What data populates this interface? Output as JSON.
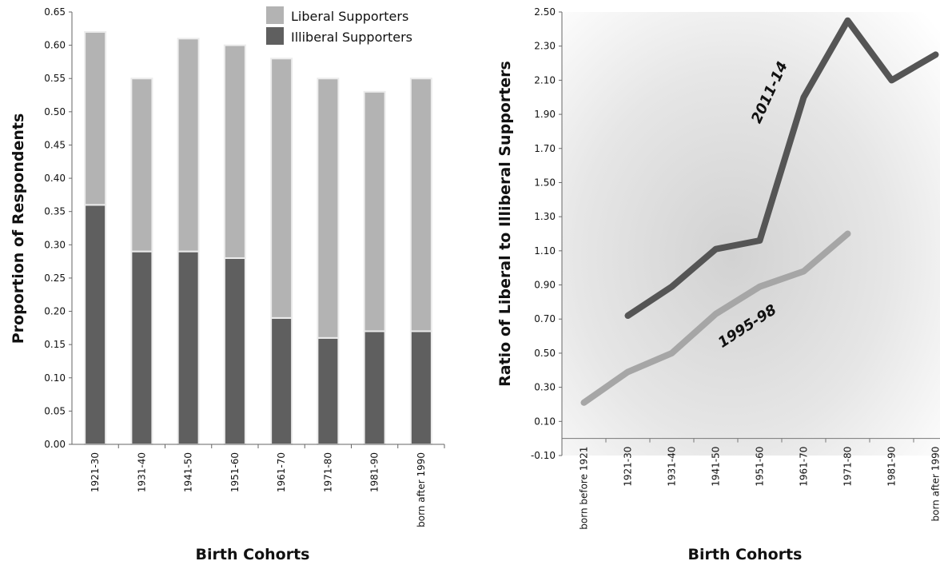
{
  "chart_data": [
    {
      "type": "bar",
      "stacked": true,
      "categories": [
        "1921-30",
        "1931-40",
        "1941-50",
        "1951-60",
        "1961-70",
        "1971-80",
        "1981-90",
        "born after 1990"
      ],
      "series": [
        {
          "name": "Illiberal Supporters",
          "color": "#5f5f5f",
          "values": [
            0.36,
            0.29,
            0.29,
            0.28,
            0.19,
            0.16,
            0.17,
            0.17
          ]
        },
        {
          "name": "Liberal Supporters",
          "color": "#b3b3b3",
          "values": [
            0.26,
            0.26,
            0.32,
            0.32,
            0.39,
            0.39,
            0.36,
            0.38
          ]
        }
      ],
      "totals": [
        0.62,
        0.55,
        0.61,
        0.6,
        0.58,
        0.55,
        0.53,
        0.55
      ],
      "xlabel": "Birth Cohorts",
      "ylabel": "Proportion of Respondents",
      "ylim": [
        0,
        0.65
      ],
      "yticks": [
        "0.00",
        "0.05",
        "0.10",
        "0.15",
        "0.20",
        "0.25",
        "0.30",
        "0.35",
        "0.40",
        "0.45",
        "0.50",
        "0.55",
        "0.60",
        "0.65"
      ],
      "legend_position": "top-right"
    },
    {
      "type": "line",
      "categories": [
        "born before 1921",
        "1921-30",
        "1931-40",
        "1941-50",
        "1951-60",
        "1961-70",
        "1971-80",
        "1981-90",
        "born after 1990"
      ],
      "series": [
        {
          "name": "1995-98",
          "color": "#a6a6a6",
          "values": [
            0.21,
            0.39,
            0.5,
            0.73,
            0.89,
            0.98,
            1.2,
            null,
            null
          ]
        },
        {
          "name": "2011-14",
          "color": "#555555",
          "values": [
            null,
            0.72,
            0.89,
            1.11,
            1.16,
            2.0,
            2.45,
            2.1,
            2.25
          ]
        }
      ],
      "xlabel": "Birth Cohorts",
      "ylabel": "Ratio of Liberal to Illiberal Supporters",
      "ylim": [
        -0.1,
        2.5
      ],
      "yticks": [
        "-0.10",
        "0.10",
        "0.30",
        "0.50",
        "0.70",
        "0.90",
        "1.10",
        "1.30",
        "1.50",
        "1.70",
        "1.90",
        "2.10",
        "2.30",
        "2.50"
      ]
    }
  ]
}
